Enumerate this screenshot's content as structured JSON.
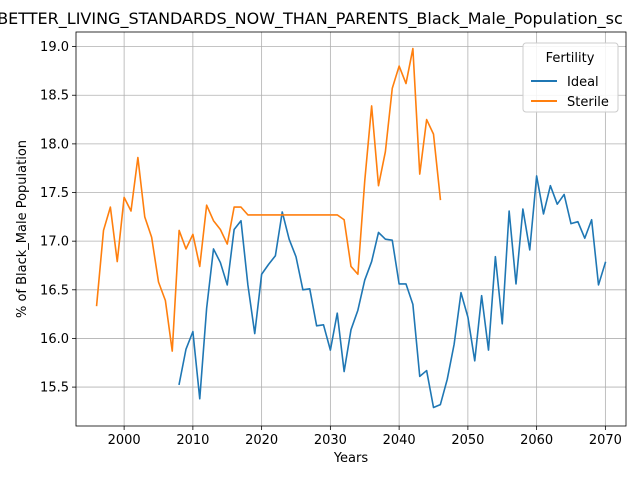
{
  "chart_data": {
    "type": "line",
    "title": "BETTER_LIVING_STANDARDS_NOW_THAN_PARENTS_Black_Male_Population_sc",
    "xlabel": "Years",
    "ylabel": "% of Black_Male Population",
    "xlim": [
      1993,
      2073
    ],
    "ylim": [
      15.1,
      19.15
    ],
    "xticks": [
      2000,
      2010,
      2020,
      2030,
      2040,
      2050,
      2060,
      2070
    ],
    "yticks": [
      15.5,
      16.0,
      16.5,
      17.0,
      17.5,
      18.0,
      18.5,
      19.0
    ],
    "xtick_labels": [
      "2000",
      "2010",
      "2020",
      "2030",
      "2040",
      "2050",
      "2060",
      "2070"
    ],
    "ytick_labels": [
      "15.5",
      "16.0",
      "16.5",
      "17.0",
      "17.5",
      "18.0",
      "18.5",
      "19.0"
    ],
    "grid": true,
    "legend": {
      "title": "Fertility",
      "placement": "top-right"
    },
    "series": [
      {
        "name": "Ideal",
        "color": "#1f77b4",
        "x": [
          2008,
          2009,
          2010,
          2011,
          2012,
          2013,
          2014,
          2015,
          2016,
          2017,
          2018,
          2019,
          2020,
          2021,
          2022,
          2023,
          2024,
          2025,
          2026,
          2027,
          2028,
          2029,
          2030,
          2031,
          2032,
          2033,
          2034,
          2035,
          2036,
          2037,
          2038,
          2039,
          2040,
          2041,
          2042,
          2043,
          2044,
          2045,
          2046,
          2047,
          2048,
          2049,
          2050,
          2051,
          2052,
          2053,
          2054,
          2055,
          2056,
          2057,
          2058,
          2059,
          2060,
          2061,
          2062,
          2063,
          2064,
          2065,
          2066,
          2067,
          2068,
          2069,
          2070
        ],
        "values": [
          15.53,
          15.89,
          16.07,
          15.38,
          16.31,
          16.92,
          16.78,
          16.55,
          17.12,
          17.21,
          16.55,
          16.05,
          16.66,
          16.76,
          16.85,
          17.3,
          17.02,
          16.84,
          16.5,
          16.51,
          16.13,
          16.14,
          15.88,
          16.26,
          15.66,
          16.09,
          16.29,
          16.6,
          16.79,
          17.09,
          17.02,
          17.01,
          16.56,
          16.56,
          16.35,
          15.61,
          15.67,
          15.29,
          15.32,
          15.58,
          15.94,
          16.47,
          16.22,
          15.77,
          16.44,
          15.88,
          16.84,
          16.15,
          17.31,
          16.56,
          17.33,
          16.91,
          17.67,
          17.28,
          17.57,
          17.38,
          17.48,
          17.18,
          17.2,
          17.03,
          17.22,
          16.55,
          16.78
        ]
      },
      {
        "name": "Sterile",
        "color": "#ff7f0e",
        "x": [
          1996,
          1997,
          1998,
          1999,
          2000,
          2001,
          2002,
          2003,
          2004,
          2005,
          2006,
          2007,
          2008,
          2009,
          2010,
          2011,
          2012,
          2013,
          2014,
          2015,
          2016,
          2017,
          2018,
          2019,
          2020,
          2021,
          2022,
          2023,
          2024,
          2025,
          2026,
          2027,
          2028,
          2029,
          2030,
          2031,
          2032,
          2033,
          2034,
          2035,
          2036,
          2037,
          2038,
          2039,
          2040,
          2041,
          2042,
          2043,
          2044,
          2045,
          2046
        ],
        "values": [
          16.34,
          17.11,
          17.35,
          16.79,
          17.45,
          17.31,
          17.86,
          17.25,
          17.04,
          16.58,
          16.39,
          15.87,
          17.11,
          16.92,
          17.07,
          16.74,
          17.37,
          17.21,
          17.12,
          16.97,
          17.35,
          17.35,
          17.27,
          17.27,
          17.27,
          17.27,
          17.27,
          17.27,
          17.27,
          17.27,
          17.27,
          17.27,
          17.27,
          17.27,
          17.27,
          17.27,
          17.22,
          16.74,
          16.66,
          17.62,
          18.39,
          17.57,
          17.92,
          18.57,
          18.8,
          18.62,
          18.98,
          17.69,
          18.25,
          18.1,
          17.43
        ]
      }
    ]
  }
}
